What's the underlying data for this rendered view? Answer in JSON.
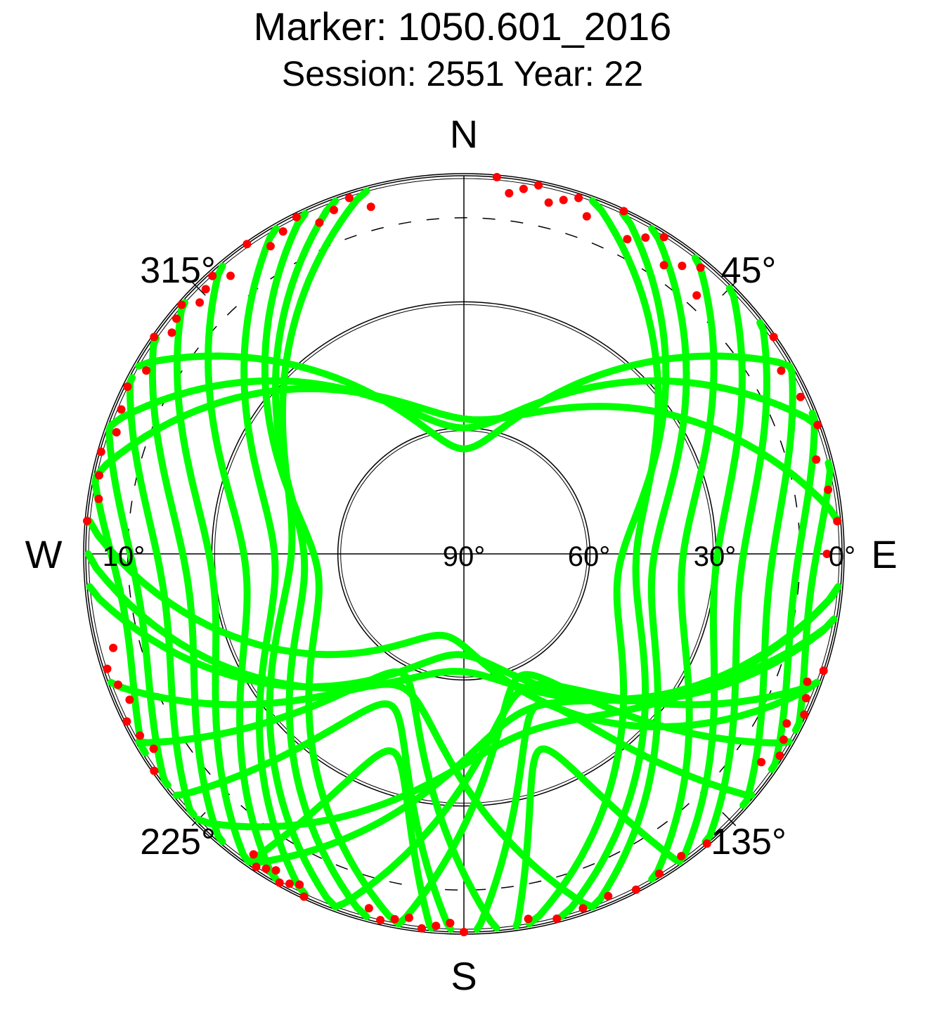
{
  "chart_data": {
    "type": "scatter",
    "projection": "polar skyplot (azimuth / elevation)",
    "title": "Marker: 1050.601_2016",
    "subtitle": "Session: 2551 Year: 22",
    "compass_labels": {
      "north": "N",
      "east": "E",
      "south": "S",
      "west": "W"
    },
    "azimuth_labels": [
      "45°",
      "135°",
      "225°",
      "315°"
    ],
    "elevation_labels": [
      "0°",
      "30°",
      "60°",
      "90°",
      "10°"
    ],
    "elevation_circles_deg": [
      0,
      30,
      60
    ],
    "elevation_mask_deg": 10,
    "colors": {
      "track": "#00ff00",
      "below_cutoff": "#ff0000",
      "grid": "#000000",
      "mask": "#000000"
    },
    "series": [
      {
        "color": "green",
        "tracks": [
          {
            "az_start": 345,
            "az_end": 200,
            "el_max": 49
          },
          {
            "az_start": 340,
            "az_end": 195,
            "el_max": 52
          },
          {
            "az_start": 335,
            "az_end": 190,
            "el_max": 55
          },
          {
            "az_start": 330,
            "az_end": 205,
            "el_max": 45
          },
          {
            "az_start": 320,
            "az_end": 210,
            "el_max": 38
          },
          {
            "az_start": 312,
            "az_end": 215,
            "el_max": 30
          },
          {
            "az_start": 305,
            "az_end": 220,
            "el_max": 24
          },
          {
            "az_start": 298,
            "az_end": 226,
            "el_max": 18
          },
          {
            "az_start": 290,
            "az_end": 232,
            "el_max": 12
          },
          {
            "az_start": 282,
            "az_end": 238,
            "el_max": 8
          },
          {
            "az_start": 20,
            "az_end": 165,
            "el_max": 49
          },
          {
            "az_start": 25,
            "az_end": 170,
            "el_max": 53
          },
          {
            "az_start": 30,
            "az_end": 160,
            "el_max": 45
          },
          {
            "az_start": 38,
            "az_end": 150,
            "el_max": 38
          },
          {
            "az_start": 45,
            "az_end": 145,
            "el_max": 30
          },
          {
            "az_start": 52,
            "az_end": 140,
            "el_max": 24
          },
          {
            "az_start": 60,
            "az_end": 132,
            "el_max": 17
          },
          {
            "az_start": 68,
            "az_end": 125,
            "el_max": 11
          },
          {
            "az_start": 76,
            "az_end": 118,
            "el_max": 7
          },
          {
            "az_start": 270,
            "az_end": 95,
            "el_max": 62
          },
          {
            "az_start": 265,
            "az_end": 100,
            "el_max": 66
          },
          {
            "az_start": 282,
            "az_end": 85,
            "el_max": 58
          },
          {
            "az_start": 290,
            "az_end": 70,
            "el_max": 60
          },
          {
            "az_start": 275,
            "az_end": 110,
            "el_max": 70
          },
          {
            "az_start": 300,
            "az_end": 60,
            "el_max": 65
          },
          {
            "az_start": 250,
            "az_end": 160,
            "el_max": 55
          },
          {
            "az_start": 240,
            "az_end": 175,
            "el_max": 58
          },
          {
            "az_start": 230,
            "az_end": 182,
            "el_max": 50
          },
          {
            "az_start": 215,
            "az_end": 185,
            "el_max": 40
          },
          {
            "az_start": 110,
            "az_end": 200,
            "el_max": 55
          },
          {
            "az_start": 120,
            "az_end": 190,
            "el_max": 58
          },
          {
            "az_start": 130,
            "az_end": 178,
            "el_max": 50
          },
          {
            "az_start": 145,
            "az_end": 172,
            "el_max": 40
          },
          {
            "az_start": 100,
            "az_end": 215,
            "el_max": 50
          },
          {
            "az_start": 95,
            "az_end": 225,
            "el_max": 45
          }
        ]
      },
      {
        "color": "red",
        "description_of_points": "observations below elevation cutoff (near horizon)",
        "clusters": [
          {
            "az_min": 5,
            "az_max": 20,
            "el_min": 0,
            "el_max": 5
          },
          {
            "az_min": 25,
            "az_max": 42,
            "el_min": 0,
            "el_max": 8
          },
          {
            "az_min": 55,
            "az_max": 90,
            "el_min": 0,
            "el_max": 4
          },
          {
            "az_min": 108,
            "az_max": 125,
            "el_min": 0,
            "el_max": 4
          },
          {
            "az_min": 140,
            "az_max": 170,
            "el_min": 0,
            "el_max": 2
          },
          {
            "az_min": 180,
            "az_max": 195,
            "el_min": 0,
            "el_max": 3
          },
          {
            "az_min": 205,
            "az_max": 215,
            "el_min": 0,
            "el_max": 3
          },
          {
            "az_min": 235,
            "az_max": 255,
            "el_min": 0,
            "el_max": 4
          },
          {
            "az_min": 275,
            "az_max": 300,
            "el_min": 0,
            "el_max": 3
          },
          {
            "az_min": 305,
            "az_max": 320,
            "el_min": 0,
            "el_max": 4
          },
          {
            "az_min": 325,
            "az_max": 345,
            "el_min": 0,
            "el_max": 5
          }
        ]
      }
    ]
  }
}
